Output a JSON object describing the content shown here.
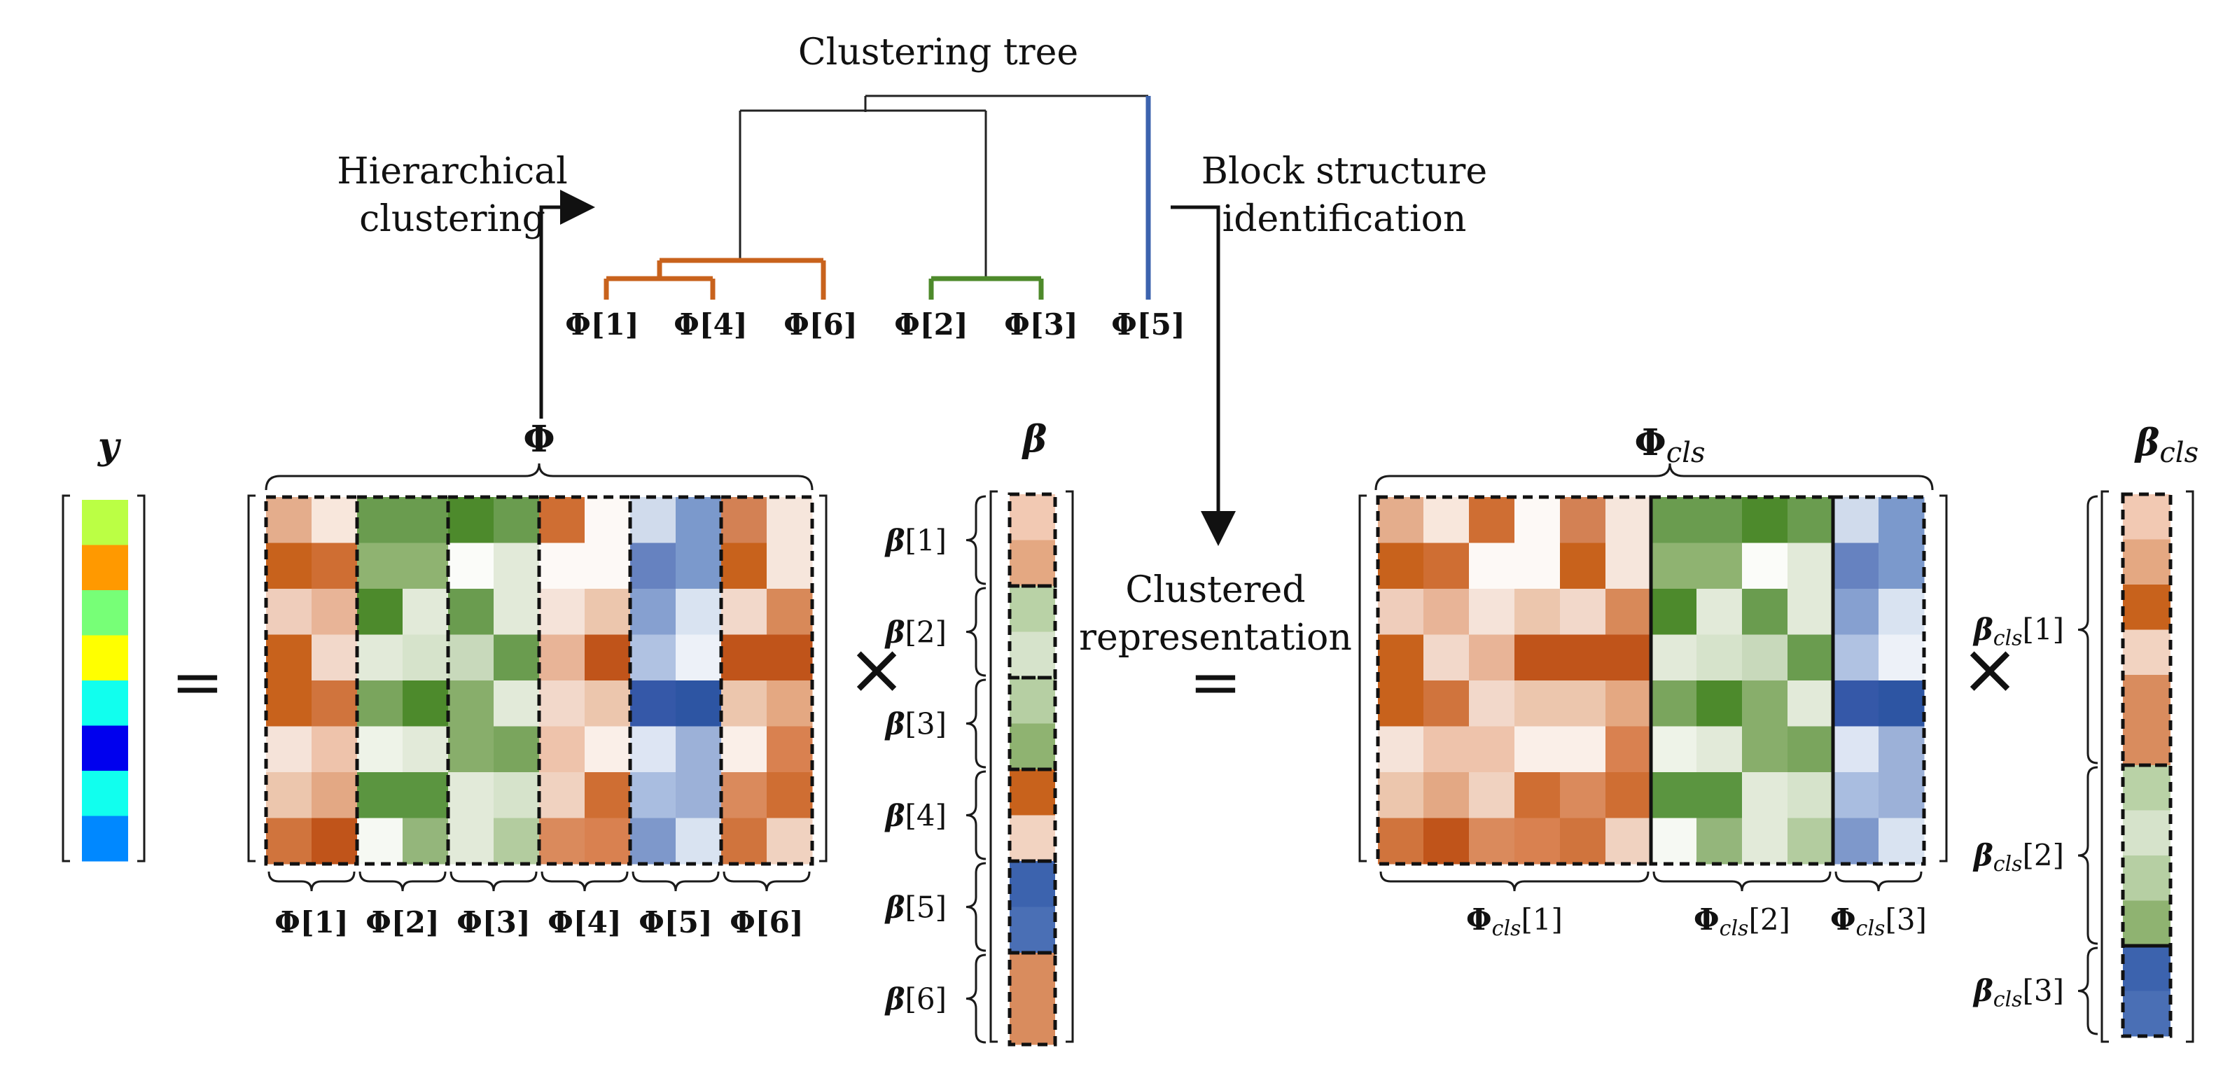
{
  "tree": {
    "title": "Clustering tree",
    "left_caption": [
      "Hierarchical",
      "clustering"
    ],
    "right_caption": [
      "Block structure",
      "identification"
    ],
    "leaves": [
      "Φ[1]",
      "Φ[4]",
      "Φ[6]",
      "Φ[2]",
      "Φ[3]",
      "Φ[5]"
    ]
  },
  "center_caption": [
    "Clustered",
    "representation"
  ],
  "labels": {
    "y": "y",
    "phi": "Φ",
    "beta": "β",
    "phi_cls": "Φ",
    "phi_cls_sub": "cls",
    "beta_cls": "β",
    "beta_cls_sub": "cls",
    "equals": "=",
    "times": "×"
  },
  "phi_columns": [
    "Φ[1]",
    "Φ[2]",
    "Φ[3]",
    "Φ[4]",
    "Φ[5]",
    "Φ[6]"
  ],
  "beta_entries": [
    "β[1]",
    "β[2]",
    "β[3]",
    "β[4]",
    "β[5]",
    "β[6]"
  ],
  "phi_cls_groups": [
    {
      "base": "Φ",
      "sub": "cls",
      "idx": "[1]"
    },
    {
      "base": "Φ",
      "sub": "cls",
      "idx": "[2]"
    },
    {
      "base": "Φ",
      "sub": "cls",
      "idx": "[3]"
    }
  ],
  "beta_cls_groups": [
    {
      "base": "β",
      "sub": "cls",
      "idx": "[1]"
    },
    {
      "base": "β",
      "sub": "cls",
      "idx": "[2]"
    },
    {
      "base": "β",
      "sub": "cls",
      "idx": "[3]"
    }
  ],
  "colors": {
    "orange_cluster": "#c8621c",
    "green_cluster": "#4e8a2b",
    "blue_cluster": "#3c63ae",
    "y_cells": [
      "#bbff44",
      "#ff9900",
      "#77ff77",
      "#ffff00",
      "#11ffee",
      "#0000ee",
      "#11ffee",
      "#0088ff"
    ],
    "phi_cells": [
      [
        "#e4ad8c",
        "#f8e7dc",
        "#6a9c4f",
        "#6a9c4f",
        "#4d8a2c",
        "#6a9c4f",
        "#cf6e33",
        "#fdf9f6",
        "#d0dbec",
        "#7b99cc",
        "#d38154",
        "#f6e6dc"
      ],
      [
        "#c8621c",
        "#cf6e33",
        "#8fb371",
        "#8fb371",
        "#fbfcf9",
        "#e2ead9",
        "#fdf9f6",
        "#fdf9f6",
        "#6682c0",
        "#7b99cc",
        "#c8621c",
        "#f6e6dc"
      ],
      [
        "#efcdbb",
        "#e8b497",
        "#4d8a2c",
        "#e2ead9",
        "#6a9c4f",
        "#e2ead9",
        "#f5e3d9",
        "#ecc6ad",
        "#86a0d0",
        "#d9e3f1",
        "#f2d8ca",
        "#d88959"
      ],
      [
        "#c8621c",
        "#f2d8ca",
        "#e2ead9",
        "#d6e3cb",
        "#c8d9bb",
        "#6a9c4f",
        "#e8b497",
        "#c0541a",
        "#b0c2e2",
        "#edf1f8",
        "#c0541a",
        "#c0541a"
      ],
      [
        "#c8621c",
        "#d0743d",
        "#7aa55d",
        "#4d8a2c",
        "#88ae6b",
        "#e2ead9",
        "#f2d8ca",
        "#ecc6ad",
        "#3558a8",
        "#2d55a3",
        "#ecc6ad",
        "#e4a882"
      ],
      [
        "#f5e3d9",
        "#eec3ab",
        "#eef3e8",
        "#e2ead9",
        "#88ae6b",
        "#7aa55d",
        "#eec3ab",
        "#faefe8",
        "#dde5f3",
        "#9cb1d8",
        "#faefe8",
        "#d98150"
      ],
      [
        "#ecc6ad",
        "#e3a884",
        "#5b9540",
        "#5b9540",
        "#e2ead9",
        "#d6e3cb",
        "#f0d2c0",
        "#cf6e33",
        "#a9bde0",
        "#9cb1d8",
        "#da8a5c",
        "#cf6e33"
      ],
      [
        "#d0743d",
        "#c0541a",
        "#f6f9f3",
        "#94b67b",
        "#e2ead9",
        "#b3cc9f",
        "#da8a5c",
        "#d98150",
        "#7e98cb",
        "#d9e3f1",
        "#d0743d",
        "#f0d2c0"
      ]
    ],
    "beta_cells": [
      "#f2c9b3",
      "#e4a882",
      "#b9d2a6",
      "#d6e3cb",
      "#b6cfa3",
      "#8fb371",
      "#c8621c",
      "#f2d3c1",
      "#3c63ae",
      "#4a6fb5",
      "#d98c5e",
      "#d98c5e"
    ],
    "phi_cls_cells": [
      [
        "#e4ad8c",
        "#f8e7dc",
        "#cf6e33",
        "#fdf9f6",
        "#d38154",
        "#f6e6dc",
        "#6a9c4f",
        "#6a9c4f",
        "#4d8a2c",
        "#6a9c4f",
        "#d0dbec",
        "#7b99cc"
      ],
      [
        "#c8621c",
        "#cf6e33",
        "#fdf9f6",
        "#fdf9f6",
        "#c8621c",
        "#f6e6dc",
        "#8fb371",
        "#8fb371",
        "#fbfcf9",
        "#e2ead9",
        "#6682c0",
        "#7b99cc"
      ],
      [
        "#efcdbb",
        "#e8b497",
        "#f5e3d9",
        "#ecc6ad",
        "#f2d8ca",
        "#d88959",
        "#4d8a2c",
        "#e2ead9",
        "#6a9c4f",
        "#e2ead9",
        "#86a0d0",
        "#d9e3f1"
      ],
      [
        "#c8621c",
        "#f2d8ca",
        "#e8b497",
        "#c0541a",
        "#c0541a",
        "#c0541a",
        "#e2ead9",
        "#d6e3cb",
        "#c8d9bb",
        "#6a9c4f",
        "#b0c2e2",
        "#edf1f8"
      ],
      [
        "#c8621c",
        "#d0743d",
        "#f2d8ca",
        "#ecc6ad",
        "#ecc6ad",
        "#e4a882",
        "#7aa55d",
        "#4d8a2c",
        "#88ae6b",
        "#e2ead9",
        "#3558a8",
        "#2d55a3"
      ],
      [
        "#f5e3d9",
        "#eec3ab",
        "#eec3ab",
        "#faefe8",
        "#faefe8",
        "#d98150",
        "#eef3e8",
        "#e2ead9",
        "#88ae6b",
        "#7aa55d",
        "#dde5f3",
        "#9cb1d8"
      ],
      [
        "#ecc6ad",
        "#e3a884",
        "#f0d2c0",
        "#cf6e33",
        "#da8a5c",
        "#cf6e33",
        "#5b9540",
        "#5b9540",
        "#e2ead9",
        "#d6e3cb",
        "#a9bde0",
        "#9cb1d8"
      ],
      [
        "#d0743d",
        "#c0541a",
        "#da8a5c",
        "#d98150",
        "#d0743d",
        "#f0d2c0",
        "#f6f9f3",
        "#94b67b",
        "#e2ead9",
        "#b3cc9f",
        "#7e98cb",
        "#d9e3f1"
      ]
    ],
    "beta_cls_cells": [
      "#f2c9b3",
      "#e4a882",
      "#c8621c",
      "#f2d3c1",
      "#d98c5e",
      "#d98c5e",
      "#b9d2a6",
      "#d6e3cb",
      "#b6cfa3",
      "#8fb371",
      "#3c63ae",
      "#4a6fb5"
    ]
  }
}
